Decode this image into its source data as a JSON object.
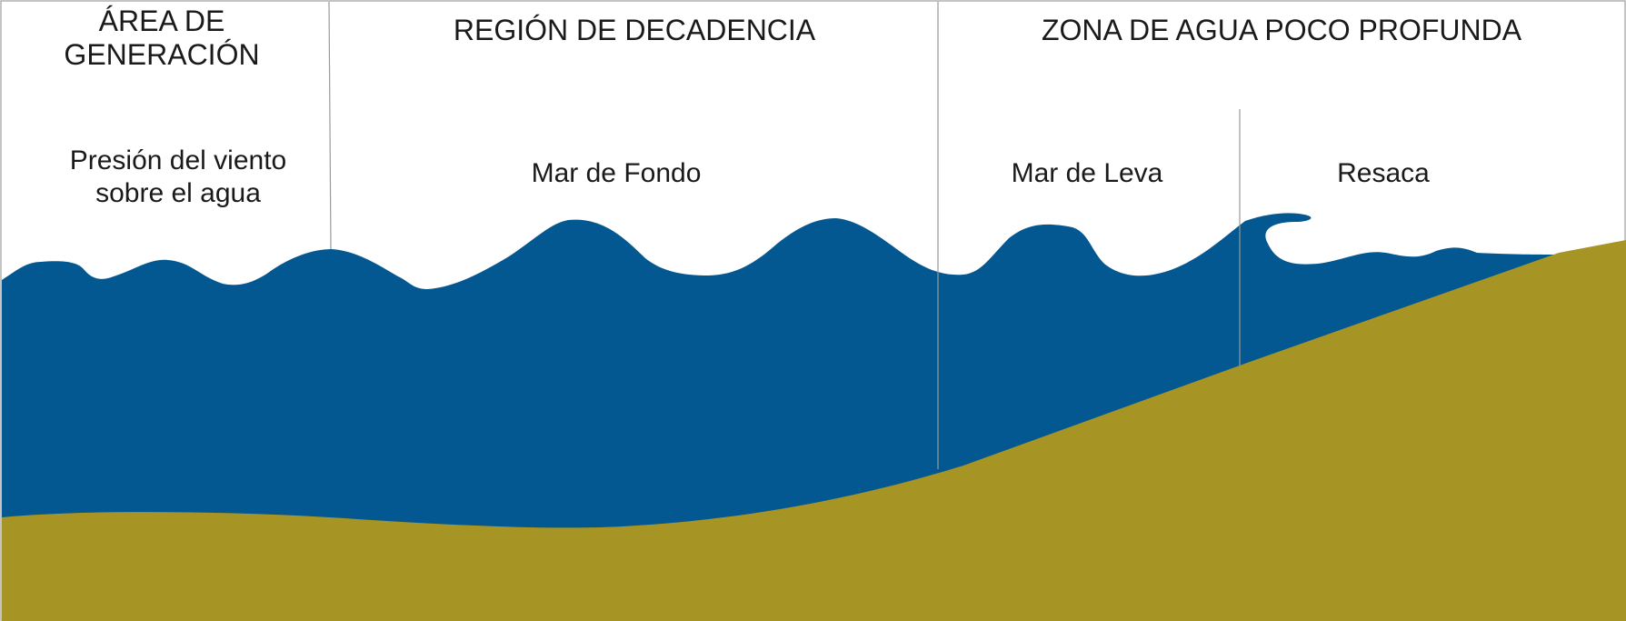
{
  "colors": {
    "water": "#045891",
    "seabed": "#a69424",
    "divider": "#9a9a9a",
    "text": "#1a1a1a",
    "background": "#ffffff"
  },
  "regions": {
    "generation": {
      "title_line1": "ÁREA DE",
      "title_line2": "GENERACIÓN",
      "wave_line1": "Presión del viento",
      "wave_line2": "sobre el agua"
    },
    "decay": {
      "title": "REGIÓN DE DECADENCIA",
      "wave": "Mar de Fondo"
    },
    "shallow": {
      "title": "ZONA DE AGUA POCO PROFUNDA",
      "wave_swell": "Mar de Leva",
      "wave_surf": "Resaca"
    }
  }
}
